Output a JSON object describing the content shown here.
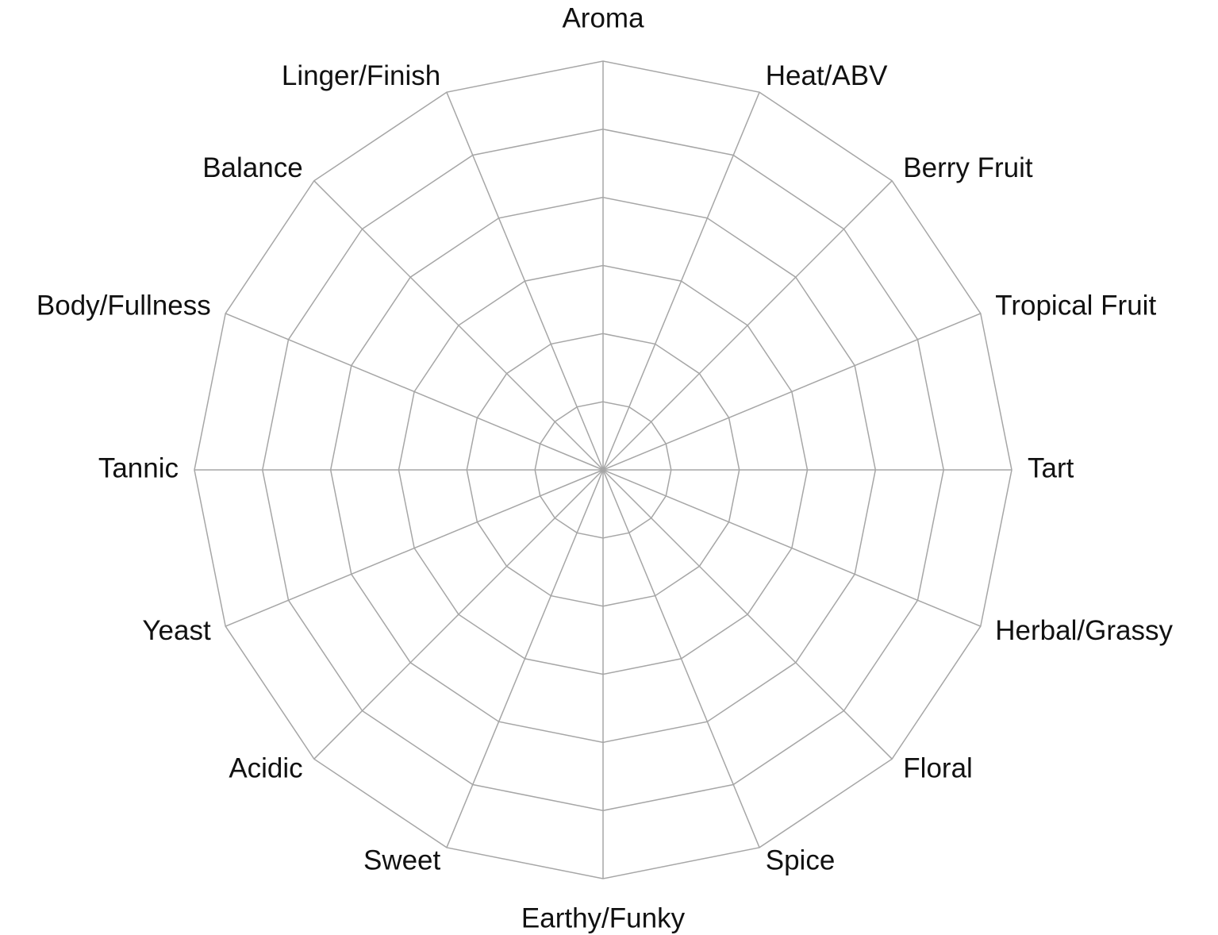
{
  "chart_data": {
    "type": "radar",
    "categories": [
      "Aroma",
      "Heat/ABV",
      "Berry Fruit",
      "Tropical Fruit",
      "Tart",
      "Herbal/Grassy",
      "Floral",
      "Spice",
      "Earthy/Funky",
      "Sweet",
      "Acidic",
      "Yeast",
      "Tannic",
      "Body/Fullness",
      "Balance",
      "Linger/Finish"
    ],
    "ylim": [
      0,
      6
    ],
    "yticks": [
      1,
      2,
      3,
      4,
      5,
      6
    ],
    "grid": true,
    "grid_color": "#a6a6a6"
  }
}
